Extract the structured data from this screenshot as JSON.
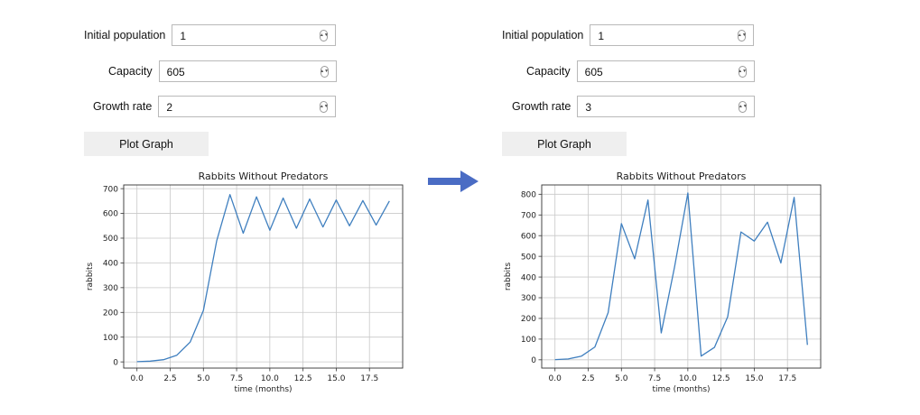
{
  "left": {
    "fields": [
      {
        "label": "Initial population",
        "value": "1"
      },
      {
        "label": "Capacity",
        "value": "605"
      },
      {
        "label": "Growth rate",
        "value": "2"
      }
    ],
    "button_label": "Plot Graph"
  },
  "right": {
    "fields": [
      {
        "label": "Initial population",
        "value": "1"
      },
      {
        "label": "Capacity",
        "value": "605"
      },
      {
        "label": "Growth rate",
        "value": "3"
      }
    ],
    "button_label": "Plot Graph"
  },
  "arrow_color": "#4a6cc4",
  "chart_data": [
    {
      "type": "line",
      "title": "Rabbits Without Predators",
      "xlabel": "time (months)",
      "ylabel": "rabbits",
      "xlim": [
        -1,
        20
      ],
      "ylim": [
        -25,
        715
      ],
      "xticks": [
        0,
        2.5,
        5,
        7.5,
        10,
        12.5,
        15,
        17.5
      ],
      "xtick_labels": [
        "0.0",
        "2.5",
        "5.0",
        "7.5",
        "10.0",
        "12.5",
        "15.0",
        "17.5"
      ],
      "yticks": [
        0,
        100,
        200,
        300,
        400,
        500,
        600,
        700
      ],
      "ytick_labels": [
        "0",
        "100",
        "200",
        "300",
        "400",
        "500",
        "600",
        "700"
      ],
      "grid": true,
      "color": "#3f7fbf",
      "x": [
        0,
        1,
        2,
        3,
        4,
        5,
        6,
        7,
        8,
        9,
        10,
        11,
        12,
        13,
        14,
        15,
        16,
        17,
        18,
        19
      ],
      "y": [
        1,
        3,
        9,
        27,
        80,
        208,
        489,
        676,
        520,
        667,
        532,
        662,
        540,
        658,
        545,
        654,
        550,
        652,
        553,
        650
      ]
    },
    {
      "type": "line",
      "title": "Rabbits Without Predators",
      "xlabel": "time (months)",
      "ylabel": "rabbits",
      "xlim": [
        -1,
        20
      ],
      "ylim": [
        -40,
        845
      ],
      "xticks": [
        0,
        2.5,
        5,
        7.5,
        10,
        12.5,
        15,
        17.5
      ],
      "xtick_labels": [
        "0.0",
        "2.5",
        "5.0",
        "7.5",
        "10.0",
        "12.5",
        "15.0",
        "17.5"
      ],
      "yticks": [
        0,
        100,
        200,
        300,
        400,
        500,
        600,
        700,
        800
      ],
      "ytick_labels": [
        "0",
        "100",
        "200",
        "300",
        "400",
        "500",
        "600",
        "700",
        "800"
      ],
      "grid": true,
      "color": "#3f7fbf",
      "x": [
        0,
        1,
        2,
        3,
        4,
        5,
        6,
        7,
        8,
        9,
        10,
        11,
        12,
        13,
        14,
        15,
        16,
        17,
        18,
        19
      ],
      "y": [
        1,
        4,
        18,
        62,
        228,
        658,
        488,
        772,
        130,
        448,
        806,
        18,
        60,
        208,
        618,
        574,
        665,
        468,
        785,
        72
      ]
    }
  ]
}
